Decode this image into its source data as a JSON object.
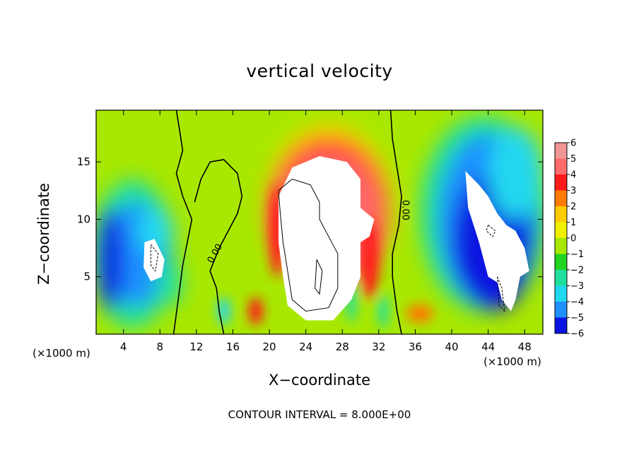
{
  "chart_data": {
    "type": "heatmap",
    "title": "vertical velocity",
    "xlabel": "X−coordinate",
    "ylabel": "Z−coordinate",
    "x_unit_left": "(×1000 m)",
    "x_unit_right": "(×1000 m)",
    "footer": "CONTOUR INTERVAL = 8.000E+00",
    "contour_label": "0.00",
    "xlim": [
      0,
      50
    ],
    "ylim": [
      0,
      19.5
    ],
    "x_ticks": [
      "4",
      "8",
      "12",
      "16",
      "20",
      "24",
      "28",
      "32",
      "36",
      "40",
      "44",
      "48"
    ],
    "x_tick_values": [
      4,
      8,
      12,
      16,
      20,
      24,
      28,
      32,
      36,
      40,
      44,
      48
    ],
    "y_ticks": [
      "5",
      "10",
      "15"
    ],
    "y_tick_values": [
      5,
      10,
      15
    ],
    "colorbar": {
      "labels": [
        "6",
        "5",
        "4",
        "3",
        "2",
        "1",
        "0",
        "−1",
        "−2",
        "−3",
        "−4",
        "−5",
        "−6"
      ],
      "values": [
        6,
        5,
        4,
        3,
        2,
        1,
        0,
        -1,
        -2,
        -3,
        -4,
        -5,
        -6
      ],
      "colors": [
        "#f09595",
        "#ff6a6a",
        "#ff1a1a",
        "#ff7a00",
        "#ffcc00",
        "#f0f000",
        "#a8e800",
        "#22d322",
        "#20e0a0",
        "#20d8f0",
        "#1e90ff",
        "#0a14e0",
        "#7a00b0"
      ],
      "saturation_color": "#ffffff"
    },
    "features": [
      {
        "kind": "updraft",
        "x": 26.5,
        "z": 10.5,
        "w": 12.0
      },
      {
        "kind": "downdraft",
        "x": 44.5,
        "z": 9.5,
        "w": -11.0
      },
      {
        "kind": "downdraft",
        "x": 6.5,
        "z": 7.0,
        "w": -9.0
      }
    ]
  }
}
